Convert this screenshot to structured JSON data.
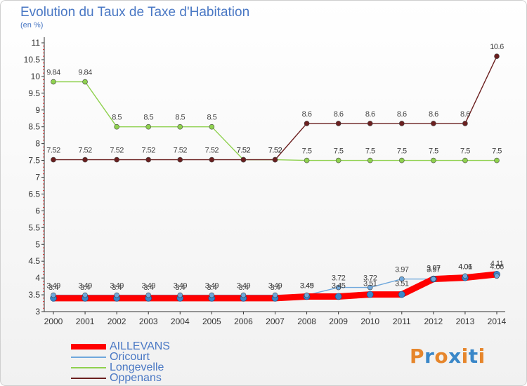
{
  "chart_data": {
    "type": "line",
    "title": "Evolution du Taux de Taxe d'Habitation",
    "subtitle": "(en %)",
    "x": [
      "2000",
      "2001",
      "2002",
      "2003",
      "2004",
      "2005",
      "2006",
      "2007",
      "2008",
      "2009",
      "2010",
      "2011",
      "2012",
      "2013",
      "2014"
    ],
    "yticks": [
      "3",
      "3.5",
      "4",
      "4.5",
      "5",
      "5.5",
      "6",
      "6.5",
      "7",
      "7.5",
      "8",
      "8.5",
      "9",
      "9.5",
      "10",
      "10.5",
      "11"
    ],
    "ylim": [
      3,
      11
    ],
    "grid": false,
    "legend_placement": "bottom-left",
    "series": [
      {
        "name": "AILLEVANS",
        "color": "#ff0000",
        "values": [
          3.4,
          3.4,
          3.4,
          3.4,
          3.4,
          3.4,
          3.4,
          3.4,
          3.45,
          3.45,
          3.51,
          3.51,
          3.97,
          4.01,
          4.11
        ],
        "labels": [
          "3.4",
          "3.4",
          "3.4",
          "3.4",
          "3.4",
          "3.4",
          "3.4",
          "3.4",
          "3.45",
          "3.45",
          "3.51",
          "3.51",
          "3.97",
          "4.01",
          "4.11"
        ]
      },
      {
        "name": "Oricourt",
        "color": "#6fa8dc",
        "values": [
          3.49,
          3.49,
          3.49,
          3.49,
          3.49,
          3.49,
          3.49,
          3.49,
          3.49,
          3.72,
          3.72,
          3.97,
          3.97,
          4.06,
          4.06
        ],
        "labels": [
          "3.49",
          "3.49",
          "3.49",
          "3.49",
          "3.49",
          "3.49",
          "3.49",
          "3.49",
          "3.49",
          "3.72",
          "3.72",
          "3.97",
          "3.97",
          "4.06",
          "4.06"
        ]
      },
      {
        "name": "Longevelle",
        "color": "#8fd14f",
        "values": [
          9.84,
          9.84,
          8.5,
          8.5,
          8.5,
          8.5,
          7.52,
          7.52,
          7.5,
          7.5,
          7.5,
          7.5,
          7.5,
          7.5,
          7.5
        ],
        "labels": [
          "9.84",
          "9.84",
          "8.5",
          "8.5",
          "8.5",
          "8.5",
          "7.52",
          "7.52",
          "7.5",
          "7.5",
          "7.5",
          "7.5",
          "7.5",
          "7.5",
          "7.5"
        ]
      },
      {
        "name": "Oppenans",
        "color": "#6b1f1f",
        "values": [
          7.52,
          7.52,
          7.52,
          7.52,
          7.52,
          7.52,
          7.52,
          7.52,
          8.6,
          8.6,
          8.6,
          8.6,
          8.6,
          8.6,
          10.6
        ],
        "labels": [
          "7.52",
          "7.52",
          "7.52",
          "7.52",
          "7.52",
          "7.52",
          "7.52",
          "7.52",
          "8.6",
          "8.6",
          "8.6",
          "8.6",
          "8.6",
          "8.6",
          "10.6"
        ]
      }
    ]
  },
  "logo": {
    "text": "Proxiti",
    "colors": [
      "#e6862c",
      "#3a87c8",
      "#e6862c",
      "#3a87c8",
      "#e6862c",
      "#3a87c8",
      "#e6862c"
    ]
  }
}
